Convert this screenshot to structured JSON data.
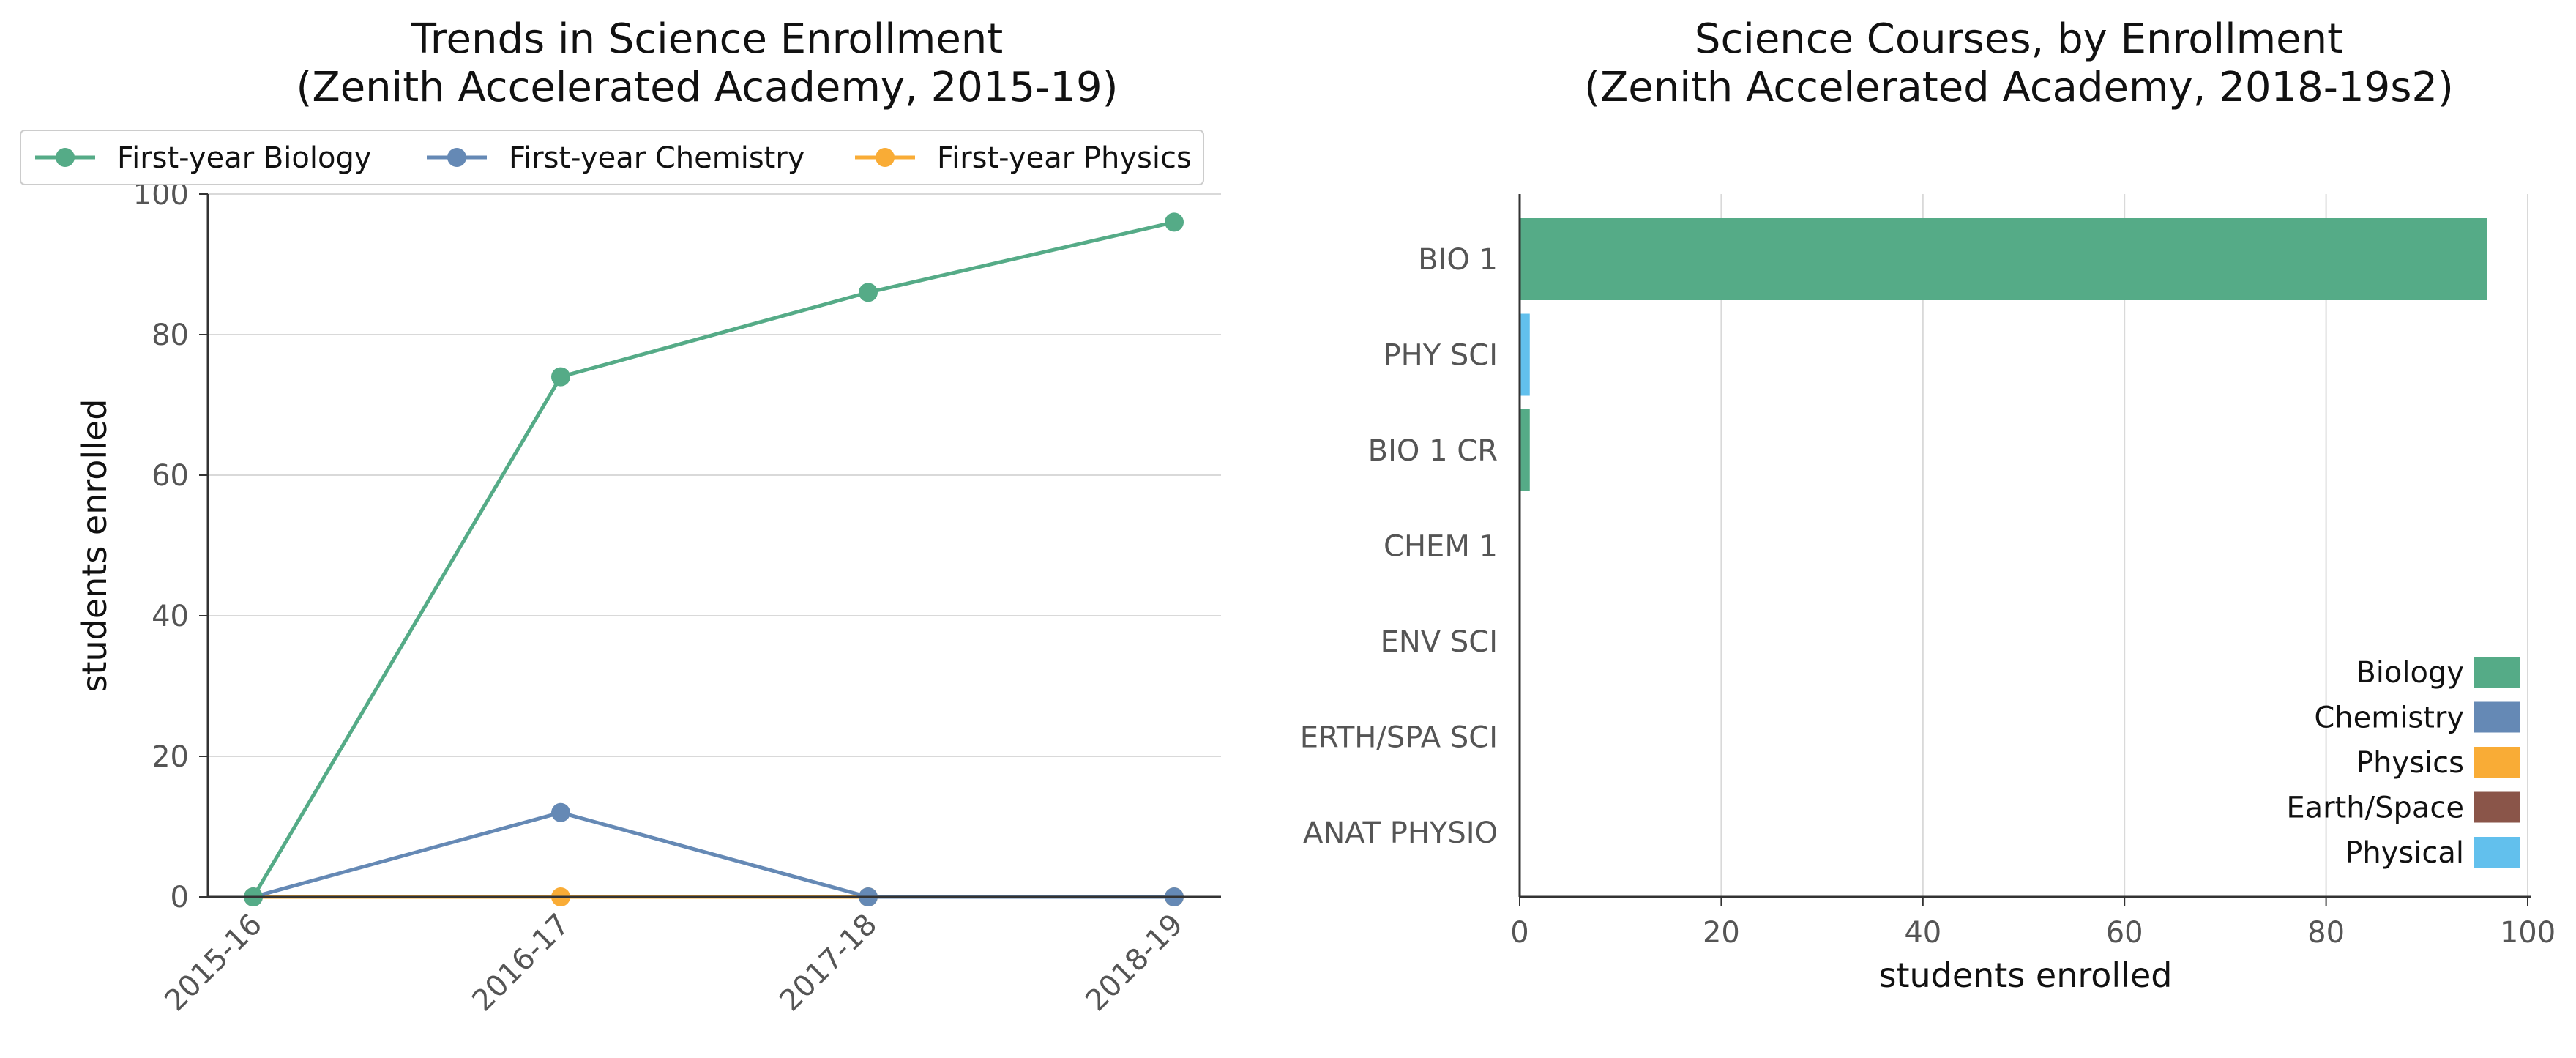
{
  "chart_data": [
    {
      "type": "line",
      "title": "Trends in Science Enrollment",
      "subtitle": "(Zenith Accelerated Academy, 2015-19)",
      "xlabel": "",
      "ylabel": "students enrolled",
      "categories": [
        "2015-16",
        "2016-17",
        "2017-18",
        "2018-19"
      ],
      "ylim": [
        0,
        100
      ],
      "yticks": [
        0,
        20,
        40,
        60,
        80,
        100
      ],
      "grid": true,
      "legend_position": "top",
      "series": [
        {
          "name": "First-year Biology",
          "color": "#55ab87",
          "values": [
            0,
            74,
            86,
            96
          ]
        },
        {
          "name": "First-year Chemistry",
          "color": "#6589b5",
          "values": [
            0,
            12,
            0,
            0
          ]
        },
        {
          "name": "First-year Physics",
          "color": "#f9ac36",
          "values": [
            0,
            0,
            0,
            0
          ]
        }
      ]
    },
    {
      "type": "bar",
      "orientation": "horizontal",
      "title": "Science Courses, by Enrollment",
      "subtitle": "(Zenith Accelerated Academy, 2018-19s2)",
      "xlabel": "students enrolled",
      "ylabel": "",
      "xlim": [
        0,
        100
      ],
      "xticks": [
        0,
        20,
        40,
        60,
        80,
        100
      ],
      "grid": true,
      "legend_position": "bottom-right",
      "categories": [
        "BIO 1",
        "PHY SCI",
        "BIO 1 CR",
        "CHEM 1",
        "ENV SCI",
        "ERTH/SPA SCI",
        "ANAT PHYSIO"
      ],
      "values": [
        96,
        1,
        1,
        0,
        0,
        0,
        0
      ],
      "bar_groups": [
        "Biology",
        "Physical",
        "Biology",
        "Chemistry",
        "Biology",
        "Earth/Space",
        "Biology"
      ],
      "legend": [
        {
          "name": "Biology",
          "color": "#55ab87"
        },
        {
          "name": "Chemistry",
          "color": "#6589b5"
        },
        {
          "name": "Physics",
          "color": "#f9ac36"
        },
        {
          "name": "Earth/Space",
          "color": "#8a5549"
        },
        {
          "name": "Physical",
          "color": "#62c0ed"
        }
      ]
    }
  ]
}
